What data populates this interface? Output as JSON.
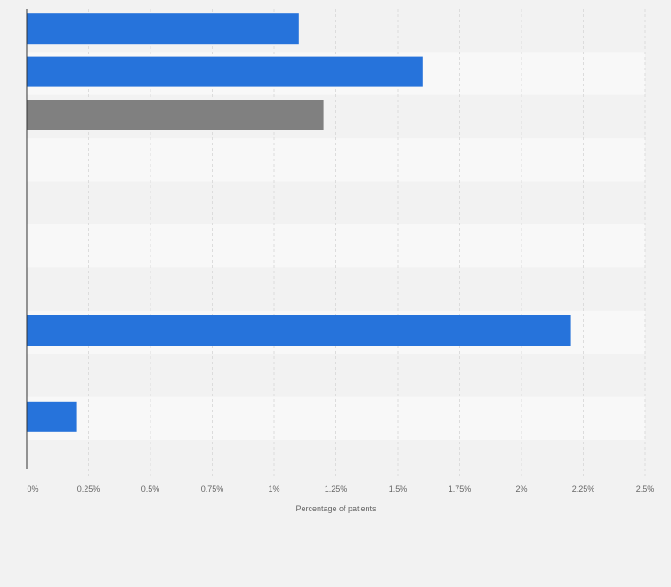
{
  "chart_data": {
    "type": "bar",
    "orientation": "horizontal",
    "title": "",
    "xlabel": "Percentage of patients",
    "ylabel": "",
    "xlim": [
      0,
      2.5
    ],
    "x_ticks": [
      "0%",
      "0.25%",
      "0.5%",
      "0.75%",
      "1%",
      "1.25%",
      "1.5%",
      "1.75%",
      "2%",
      "2.25%",
      "2.5%"
    ],
    "categories": [
      "",
      "",
      "",
      "",
      "",
      "",
      "",
      "",
      "",
      ""
    ],
    "values": [
      1.1,
      1.6,
      1.2,
      null,
      null,
      null,
      null,
      2.2,
      null,
      0.2
    ],
    "bar_colors": [
      "#2673db",
      "#2673db",
      "#808080",
      "#2673db",
      "#2673db",
      "#2673db",
      "#2673db",
      "#2673db",
      "#2673db",
      "#2673db"
    ],
    "grid": true,
    "legend": "none"
  },
  "colors": {
    "primary_bar": "#2673db",
    "highlight_bar": "#808080",
    "background": "#f2f2f2",
    "band_alt": "#f8f8f8"
  }
}
